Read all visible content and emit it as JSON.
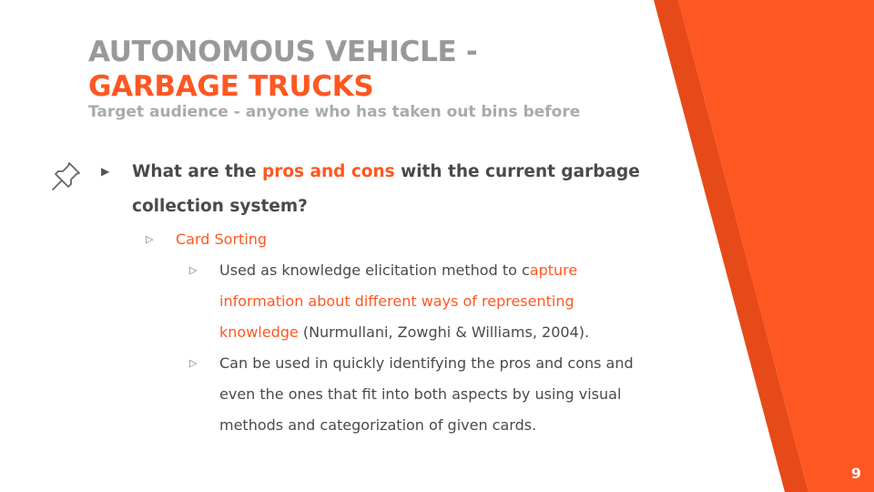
{
  "slide": {
    "title_line1": "AUTONOMOUS VEHICLE -",
    "title_line2": "GARBAGE TRUCKS",
    "subtitle": "Target audience - anyone who has taken out bins before",
    "page_number": "9"
  },
  "content": {
    "main_question_pre": "What are the ",
    "main_question_highlight": "pros and cons",
    "main_question_post": " with the current garbage collection system?",
    "sub_heading": "Card Sorting",
    "point1_pre": "Used as knowledge elicitation method to c",
    "point1_highlight": "apture information about different ways of representing knowledge",
    "point1_post": " (Nurmullani, Zowghi & Williams, 2004).",
    "point2": "Can be used in quickly identifying the pros and cons and even the ones that fit into both aspects by using visual methods and categorization of given cards."
  },
  "colors": {
    "accent": "#ff5722",
    "accent_dark": "#e64a19",
    "title_gray": "#999999",
    "body_text": "#4a4a4a"
  },
  "icons": {
    "bullet_icon": "pushpin-icon",
    "level1_bullet": "filled-triangle-bullet",
    "level2_bullet": "open-triangle-bullet"
  }
}
